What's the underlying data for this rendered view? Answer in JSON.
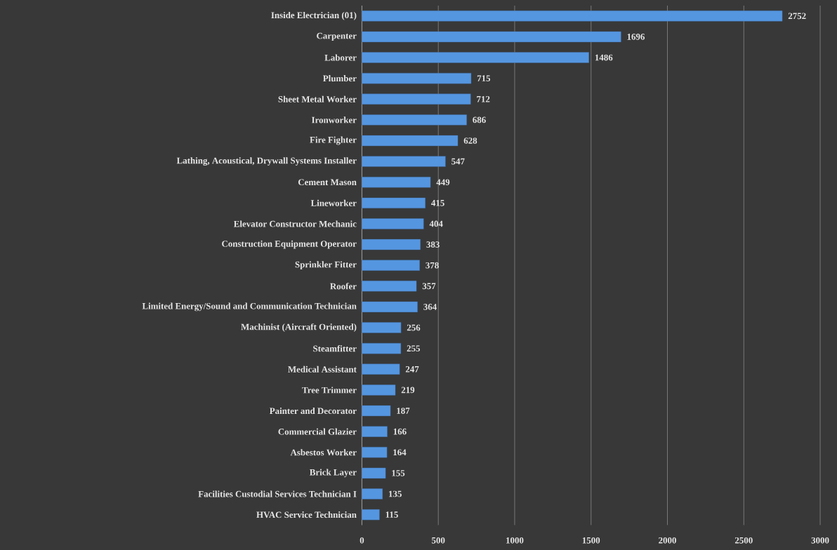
{
  "chart_data": {
    "type": "bar",
    "orientation": "horizontal",
    "categories": [
      "Inside Electrician (01)",
      "Carpenter",
      "Laborer",
      "Plumber",
      "Sheet Metal Worker",
      "Ironworker",
      "Fire Fighter",
      "Lathing, Acoustical, Drywall Systems Installer",
      "Cement Mason",
      "Lineworker",
      "Elevator Constructor Mechanic",
      "Construction Equipment Operator",
      "Sprinkler Fitter",
      "Roofer",
      "Limited Energy/Sound and Communication Technician",
      "Machinist (Aircraft Oriented)",
      "Steamfitter",
      "Medical Assistant",
      "Tree Trimmer",
      "Painter and Decorator",
      "Commercial Glazier",
      "Asbestos Worker",
      "Brick Layer",
      "Facilities Custodial Services Technician I",
      "HVAC Service Technician"
    ],
    "values": [
      2752,
      1696,
      1486,
      715,
      712,
      686,
      628,
      547,
      449,
      415,
      404,
      383,
      378,
      357,
      364,
      256,
      255,
      247,
      219,
      187,
      166,
      164,
      155,
      135,
      115
    ],
    "color": "#5596e0",
    "xlim": [
      0,
      3000
    ],
    "xticks": [
      0,
      500,
      1000,
      1500,
      2000,
      2500,
      3000
    ],
    "grid": "x",
    "data_labels": true
  }
}
